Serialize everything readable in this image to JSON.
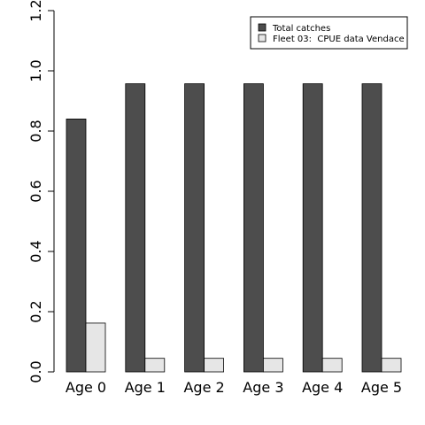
{
  "chart_data": {
    "type": "bar",
    "categories": [
      "Age 0",
      "Age 1",
      "Age 2",
      "Age 3",
      "Age 4",
      "Age 5"
    ],
    "series": [
      {
        "name": "Total catches",
        "values": [
          0.84,
          0.957,
          0.957,
          0.957,
          0.957,
          0.957
        ],
        "color": "#4d4d4d"
      },
      {
        "name": "Fleet 03:  CPUE data Vendace",
        "values": [
          0.162,
          0.045,
          0.045,
          0.045,
          0.045,
          0.045
        ],
        "color": "#e6e6e6"
      }
    ],
    "ylim": [
      0,
      1.2
    ],
    "yticks": [
      "0.0",
      "0.2",
      "0.4",
      "0.6",
      "0.8",
      "1.0",
      "1.2"
    ],
    "legend_position": "top-right",
    "grid": false
  }
}
